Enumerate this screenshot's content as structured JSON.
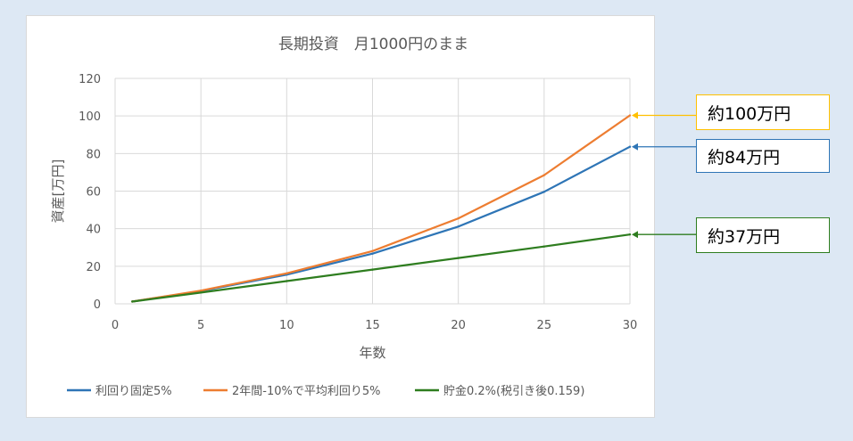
{
  "chart_data": {
    "type": "line",
    "title": "長期投資　月1000円のまま",
    "xlabel": "年数",
    "ylabel": "資産[万円]",
    "xlim": [
      0,
      30
    ],
    "ylim": [
      0,
      120
    ],
    "xticks": [
      0,
      5,
      10,
      15,
      20,
      25,
      30
    ],
    "yticks": [
      0,
      20,
      40,
      60,
      80,
      100,
      120
    ],
    "grid": true,
    "legend_position": "bottom",
    "series": [
      {
        "name": "利回り固定5%",
        "color": "#2e75b6",
        "points": [
          [
            1,
            1.2
          ],
          [
            5,
            6.8
          ],
          [
            10,
            15.5
          ],
          [
            15,
            26.7
          ],
          [
            20,
            41.1
          ],
          [
            25,
            59.6
          ],
          [
            30,
            83.6
          ]
        ]
      },
      {
        "name": "2年間-10%で平均利回り5%",
        "color": "#ed7d31",
        "points": [
          [
            1,
            1.2
          ],
          [
            5,
            7.0
          ],
          [
            10,
            16.2
          ],
          [
            15,
            28.1
          ],
          [
            20,
            45.5
          ],
          [
            25,
            68.5
          ],
          [
            30,
            100.3
          ]
        ]
      },
      {
        "name": "貯金0.2%(税引き後0.159)",
        "color": "#2e7d1f",
        "points": [
          [
            1,
            1.2
          ],
          [
            5,
            6.0
          ],
          [
            10,
            12.1
          ],
          [
            15,
            18.2
          ],
          [
            20,
            24.4
          ],
          [
            25,
            30.5
          ],
          [
            30,
            36.9
          ]
        ]
      }
    ]
  },
  "callouts": [
    {
      "text": "約100万円",
      "series": 1,
      "color": "#ffc000",
      "border": "#ffc000"
    },
    {
      "text": "約84万円",
      "series": 0,
      "color": "#2e75b6",
      "border": "#2e75b6"
    },
    {
      "text": "約37万円",
      "series": 2,
      "color": "#2e7d1f",
      "border": "#2e7d1f"
    }
  ]
}
